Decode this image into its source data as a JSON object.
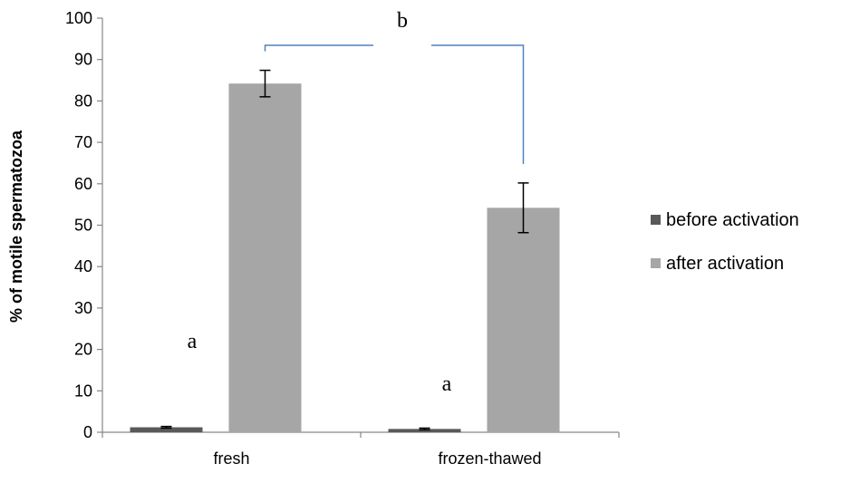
{
  "chart_data": {
    "type": "bar",
    "title": "",
    "xlabel": "",
    "ylabel": "% of motile spermatozoa",
    "categories": [
      "fresh",
      "frozen-thawed"
    ],
    "ylim": [
      0,
      100
    ],
    "yticks": [
      "0",
      "10",
      "20",
      "30",
      "40",
      "50",
      "60",
      "70",
      "80",
      "90",
      "100"
    ],
    "grid": false,
    "legend_position": "right",
    "series": [
      {
        "name": "before activation",
        "values": [
          1.2,
          0.8
        ],
        "errors": [
          0.2,
          0.2
        ],
        "color": "#595959"
      },
      {
        "name": "after activation",
        "values": [
          84.2,
          54.2
        ],
        "errors": [
          3.2,
          6.0
        ],
        "color": "#a6a6a6"
      }
    ],
    "annotations": [
      {
        "text": "a",
        "target": "fresh / before activation"
      },
      {
        "text": "a",
        "target": "frozen-thawed / before activation"
      },
      {
        "text": "b",
        "target": "after activation: fresh vs frozen-thawed"
      }
    ],
    "bracket_color": "#4f81bd"
  }
}
